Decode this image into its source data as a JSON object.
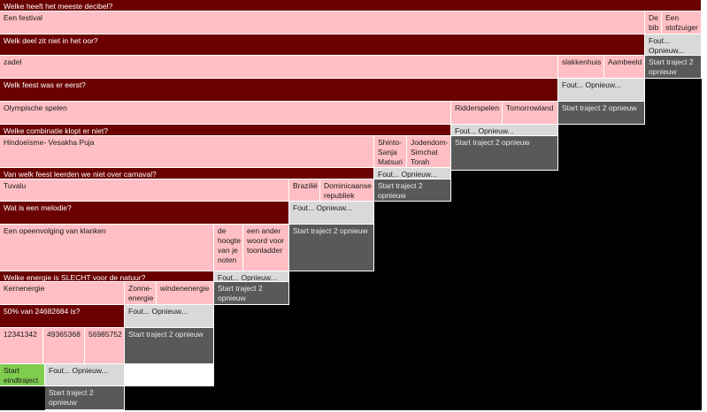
{
  "q1": {
    "question": "Welke heeft het meeste decibel?",
    "answers": [
      "Een festival",
      "De bib",
      "Een stofzuiger"
    ]
  },
  "q2": {
    "question": "Welk deel zit niet in het oor?",
    "answers": [
      "zadel",
      "slakkenhuis",
      "Aambeeld"
    ]
  },
  "q3": {
    "question": "Welk feest was er eerst?",
    "answers": [
      "Olympische spelen",
      "Ridderspelen",
      "Tomorrowland"
    ]
  },
  "q4": {
    "question": "Welke combinatie klopt er niet?",
    "answers": [
      "Hindoeïsme- Vesakha Puja",
      "Shinto- Sanja Matsuri",
      "Jodendom- Simchat Torah"
    ]
  },
  "q5": {
    "question": "Van welk feest leerden we niet over carnaval?",
    "answers": [
      "Tuvalu",
      "Brazilië",
      "Dominicaanse republiek"
    ]
  },
  "q6": {
    "question": "Wat is een melodie?",
    "answers": [
      "Een opeenvolging van klanken",
      "de hoogte van je noten",
      "een ander woord voor toonladder"
    ]
  },
  "q7": {
    "question": "Welke energie is SLECHT voor de natuur?",
    "answers": [
      "Kernenergie",
      "Zonne-energie",
      "windenenergie"
    ]
  },
  "q8": {
    "question": "50% van 24682684 is?",
    "answers": [
      "12341342",
      "49365368",
      "56985752"
    ]
  },
  "wrong_label": "Fout... Opnieuw...",
  "restart_label": "Start traject 2 opnieuw",
  "end_label": "Start eindtraject",
  "colors": {
    "question_bg": "#6b0000",
    "answer_bg": "#ffbfc4",
    "wrong_bg": "#d9d9d9",
    "restart_bg": "#595959",
    "end_bg": "#7fcc4f",
    "filler": "#000000"
  }
}
